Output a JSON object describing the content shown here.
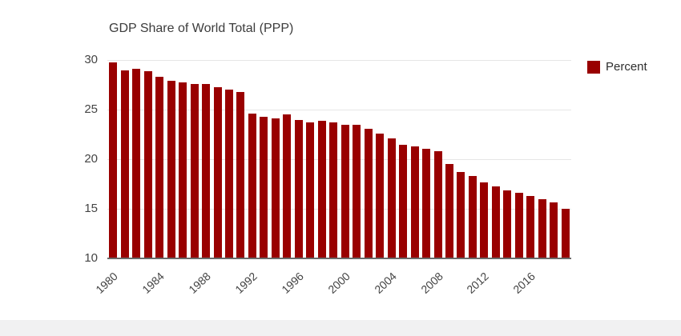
{
  "page": {
    "background_color": "#ffffff",
    "footer_strip_color": "#f1f1f2"
  },
  "chart_data": {
    "type": "bar",
    "title": "GDP Share of World Total (PPP)",
    "legend": {
      "label": "Percent",
      "position": "right"
    },
    "bar_color": "#990000",
    "grid": true,
    "ylim": [
      10,
      30
    ],
    "y_ticks": [
      30,
      25,
      20,
      15,
      10
    ],
    "x_tick_labels": [
      "1980",
      "1984",
      "1988",
      "1992",
      "1996",
      "2000",
      "2004",
      "2008",
      "2012",
      "2016"
    ],
    "x_tick_every": 4,
    "categories": [
      1980,
      1981,
      1982,
      1983,
      1984,
      1985,
      1986,
      1987,
      1988,
      1989,
      1990,
      1991,
      1992,
      1993,
      1994,
      1995,
      1996,
      1997,
      1998,
      1999,
      2000,
      2001,
      2002,
      2003,
      2004,
      2005,
      2006,
      2007,
      2008,
      2009,
      2010,
      2011,
      2012,
      2013,
      2014,
      2015,
      2016,
      2017,
      2018,
      2019
    ],
    "values": [
      29.7,
      28.9,
      29.0,
      28.8,
      28.2,
      27.8,
      27.7,
      27.5,
      27.5,
      27.2,
      26.9,
      26.7,
      24.5,
      24.2,
      24.0,
      24.4,
      23.9,
      23.6,
      23.8,
      23.6,
      23.4,
      23.4,
      23.0,
      22.5,
      22.0,
      21.4,
      21.2,
      21.0,
      20.7,
      19.4,
      18.6,
      18.2,
      17.6,
      17.2,
      16.8,
      16.5,
      16.2,
      15.9,
      15.6,
      14.9
    ],
    "xlabel": "",
    "ylabel": ""
  }
}
